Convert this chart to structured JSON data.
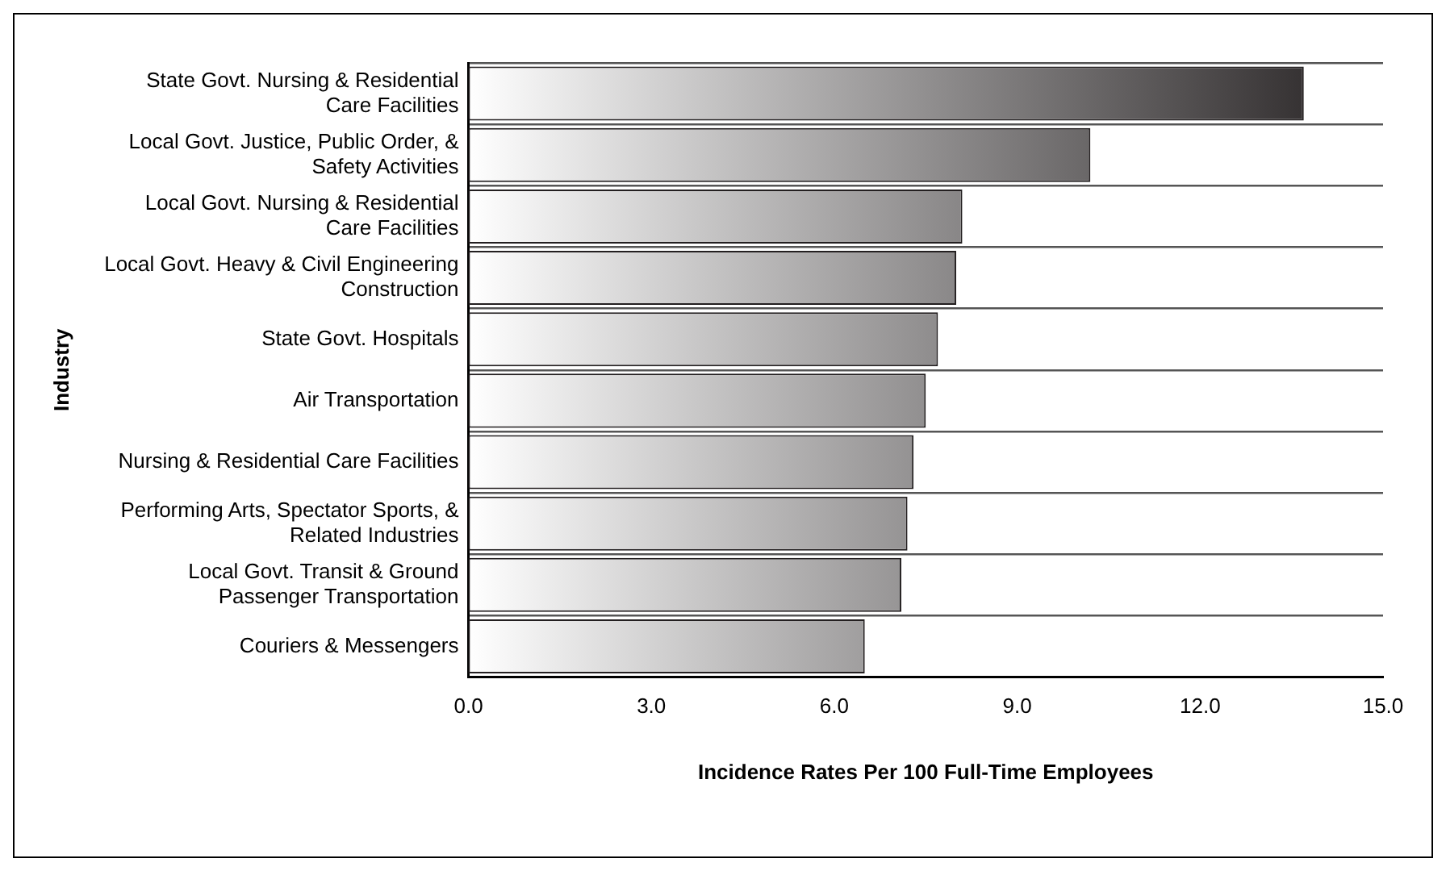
{
  "chart_data": {
    "type": "bar",
    "orientation": "horizontal",
    "xlabel": "Incidence Rates Per 100 Full-Time Employees",
    "ylabel": "Industry",
    "categories": [
      "State Govt. Nursing & Residential Care Facilities",
      "Local Govt. Justice, Public Order, & Safety Activities",
      "Local Govt. Nursing & Residential Care Facilities",
      "Local Govt. Heavy & Civil Engineering Construction",
      "State Govt. Hospitals",
      "Air Transportation",
      "Nursing & Residential Care Facilities",
      "Performing Arts, Spectator Sports, & Related Industries",
      "Local Govt. Transit & Ground Passenger Transportation",
      "Couriers & Messengers"
    ],
    "values": [
      13.7,
      10.2,
      8.1,
      8.0,
      7.7,
      7.5,
      7.3,
      7.2,
      7.1,
      6.5
    ],
    "color": "#231f20",
    "xlim": [
      0,
      15
    ],
    "xticks": [
      {
        "value": 0,
        "label": "0.0"
      },
      {
        "value": 3,
        "label": "3.0"
      },
      {
        "value": 6,
        "label": "6.0"
      },
      {
        "value": 9,
        "label": "9.0"
      },
      {
        "value": 12,
        "label": "12.0"
      },
      {
        "value": 15,
        "label": "15.0"
      }
    ],
    "grid": "y",
    "legend": false
  }
}
